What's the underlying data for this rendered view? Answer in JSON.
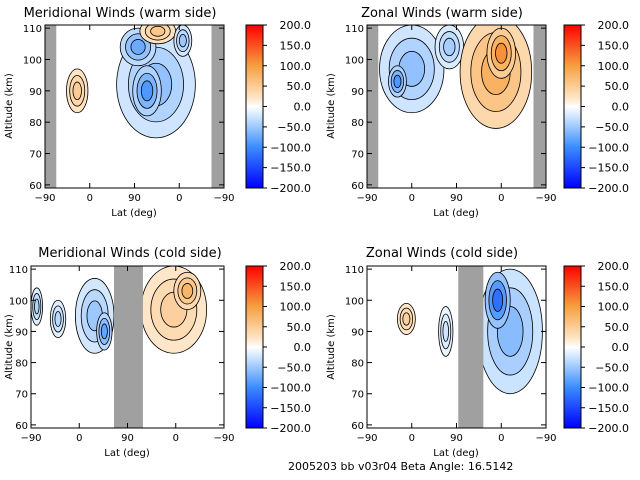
{
  "figure": {
    "footer": "2005203 bb v03r04   Beta Angle: 16.5142"
  },
  "colorbar": {
    "range": [
      -200,
      200
    ],
    "ticks": [
      "200.0",
      "150.0",
      "100.0",
      "50.0",
      "0.0",
      "-50.0",
      "-100.0",
      "-150.0",
      "-200.0"
    ],
    "colors": {
      "low": "#0000ff",
      "mid": "#ffffff",
      "high": "#ff0000"
    }
  },
  "chart_data": [
    {
      "type": "heatmap",
      "title": "Meridional Winds (warm side)",
      "xlabel": "Lat (deg)",
      "ylabel": "Altitude (km)",
      "xticks": [
        "-90",
        "0",
        "90",
        "0",
        "-90"
      ],
      "yticks": [
        "60",
        "70",
        "80",
        "90",
        "100",
        "110"
      ],
      "ylim": [
        59,
        111
      ],
      "gray_regions": [
        [
          0.0,
          0.063
        ],
        [
          0.93,
          1.0
        ]
      ],
      "blobs": [
        {
          "cx": 0.18,
          "cy": 90,
          "rx": 0.06,
          "ry": 7,
          "v": 50
        },
        {
          "cx": 0.62,
          "cy": 92,
          "rx": 0.22,
          "ry": 17,
          "v": -55
        },
        {
          "cx": 0.57,
          "cy": 90,
          "rx": 0.08,
          "ry": 8,
          "v": -90
        },
        {
          "cx": 0.52,
          "cy": 104,
          "rx": 0.1,
          "ry": 6,
          "v": -75
        },
        {
          "cx": 0.63,
          "cy": 109,
          "rx": 0.1,
          "ry": 4,
          "v": 55
        },
        {
          "cx": 0.77,
          "cy": 106,
          "rx": 0.05,
          "ry": 5,
          "v": -50
        }
      ]
    },
    {
      "type": "heatmap",
      "title": "Zonal Winds (warm side)",
      "xlabel": "Lat (deg)",
      "ylabel": "Altitude (km)",
      "xticks": [
        "-90",
        "0",
        "90",
        "0",
        "-90"
      ],
      "yticks": [
        "60",
        "70",
        "80",
        "90",
        "100",
        "110"
      ],
      "ylim": [
        59,
        111
      ],
      "gray_regions": [
        [
          0.0,
          0.063
        ],
        [
          0.93,
          1.0
        ]
      ],
      "blobs": [
        {
          "cx": 0.25,
          "cy": 97,
          "rx": 0.18,
          "ry": 14,
          "v": -55
        },
        {
          "cx": 0.17,
          "cy": 93,
          "rx": 0.05,
          "ry": 5,
          "v": -90
        },
        {
          "cx": 0.46,
          "cy": 104,
          "rx": 0.08,
          "ry": 7,
          "v": -45
        },
        {
          "cx": 0.72,
          "cy": 96,
          "rx": 0.2,
          "ry": 18,
          "v": 80
        },
        {
          "cx": 0.75,
          "cy": 102,
          "rx": 0.08,
          "ry": 8,
          "v": 110
        }
      ]
    },
    {
      "type": "heatmap",
      "title": "Meridional Winds (cold side)",
      "xlabel": "Lat (deg)",
      "ylabel": "Altitude (km)",
      "xticks": [
        "-90",
        "0",
        "90",
        "0",
        "-90"
      ],
      "yticks": [
        "60",
        "70",
        "80",
        "90",
        "100",
        "110"
      ],
      "ylim": [
        59,
        111
      ],
      "gray_regions": [
        [
          0.43,
          0.58
        ]
      ],
      "blobs": [
        {
          "cx": 0.03,
          "cy": 98,
          "rx": 0.03,
          "ry": 6,
          "v": -40
        },
        {
          "cx": 0.14,
          "cy": 94,
          "rx": 0.04,
          "ry": 6,
          "v": -35
        },
        {
          "cx": 0.33,
          "cy": 95,
          "rx": 0.1,
          "ry": 12,
          "v": -50
        },
        {
          "cx": 0.38,
          "cy": 90,
          "rx": 0.04,
          "ry": 6,
          "v": -80
        },
        {
          "cx": 0.74,
          "cy": 97,
          "rx": 0.17,
          "ry": 14,
          "v": 45
        },
        {
          "cx": 0.81,
          "cy": 103,
          "rx": 0.07,
          "ry": 6,
          "v": 75
        }
      ]
    },
    {
      "type": "heatmap",
      "title": "Zonal Winds (cold side)",
      "xlabel": "Lat (deg)",
      "ylabel": "Altitude (km)",
      "xticks": [
        "-90",
        "0",
        "90",
        "0",
        "-90"
      ],
      "yticks": [
        "60",
        "70",
        "80",
        "90",
        "100",
        "110"
      ],
      "ylim": [
        59,
        111
      ],
      "gray_regions": [
        [
          0.51,
          0.65
        ]
      ],
      "blobs": [
        {
          "cx": 0.22,
          "cy": 94,
          "rx": 0.05,
          "ry": 5,
          "v": 45
        },
        {
          "cx": 0.44,
          "cy": 90,
          "rx": 0.04,
          "ry": 8,
          "v": -25
        },
        {
          "cx": 0.8,
          "cy": 90,
          "rx": 0.18,
          "ry": 20,
          "v": -60
        },
        {
          "cx": 0.73,
          "cy": 100,
          "rx": 0.07,
          "ry": 9,
          "v": -120
        }
      ]
    }
  ]
}
